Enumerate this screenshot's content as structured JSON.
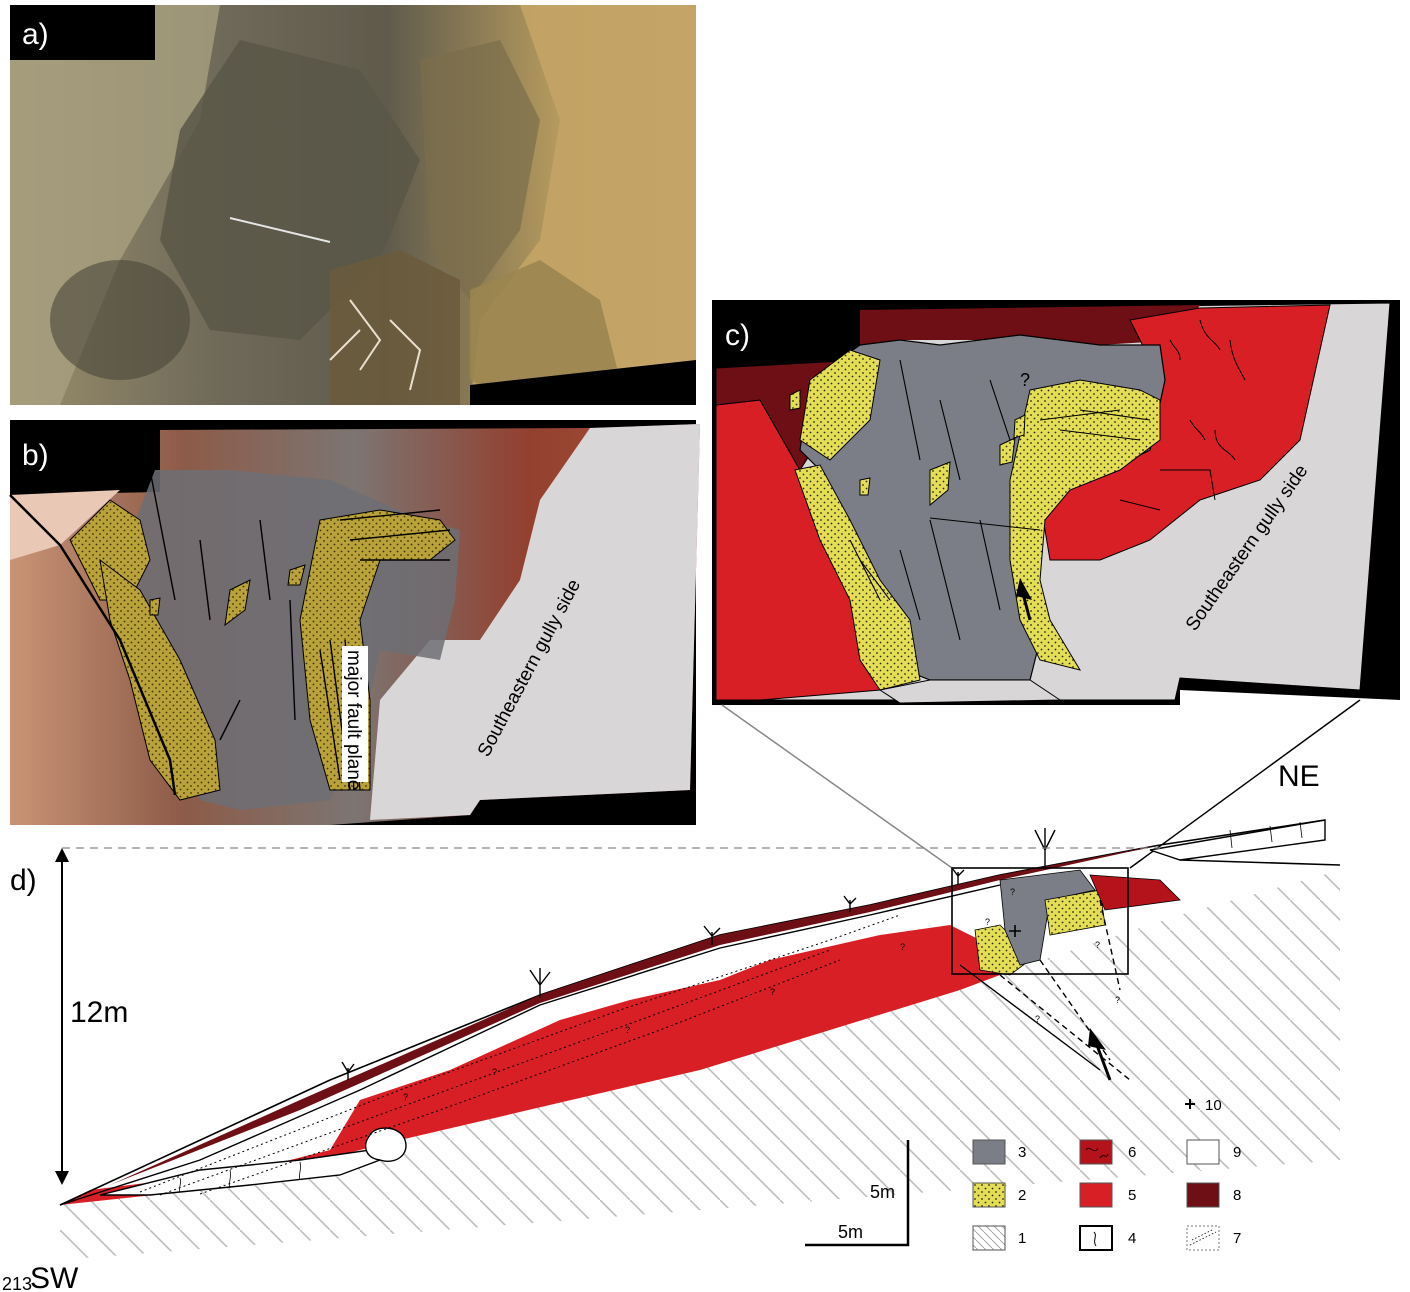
{
  "panels": {
    "a": {
      "label": "a)"
    },
    "b": {
      "label": "b)",
      "fault_label": "major fault plane",
      "side_label": "Southeastern gully side"
    },
    "c": {
      "label": "c)",
      "side_label": "Southeastern gully side",
      "question": "?"
    },
    "d": {
      "label": "d)",
      "height_label": "12m",
      "ne_label": "NE",
      "sw_label": "SW",
      "page_number": "213"
    }
  },
  "scale": {
    "vertical": "5m",
    "horizontal": "5m"
  },
  "legend": [
    {
      "key": "10",
      "symbol": "cross"
    },
    {
      "key": "3",
      "symbol": "grey",
      "color": "#7b7e86"
    },
    {
      "key": "6",
      "symbol": "dark-red-pattern",
      "color": "#b5131b"
    },
    {
      "key": "9",
      "symbol": "white",
      "color": "#ffffff"
    },
    {
      "key": "2",
      "symbol": "yellow-dots",
      "color": "#e4de57"
    },
    {
      "key": "5",
      "symbol": "red",
      "color": "#d91f26"
    },
    {
      "key": "8",
      "symbol": "maroon",
      "color": "#6d0f14"
    },
    {
      "key": "1",
      "symbol": "hatch"
    },
    {
      "key": "4",
      "symbol": "wavy"
    },
    {
      "key": "7",
      "symbol": "dotted"
    }
  ],
  "question_marks": [
    "?",
    "?",
    "?",
    "?",
    "?",
    "?",
    "?",
    "?",
    "?",
    "?"
  ],
  "colors": {
    "grey": "#7b7e86",
    "yellow": "#e4de57",
    "red": "#d91f26",
    "dark_red": "#b5131b",
    "maroon": "#6d0f14",
    "light_grey": "#d9d6d8"
  }
}
